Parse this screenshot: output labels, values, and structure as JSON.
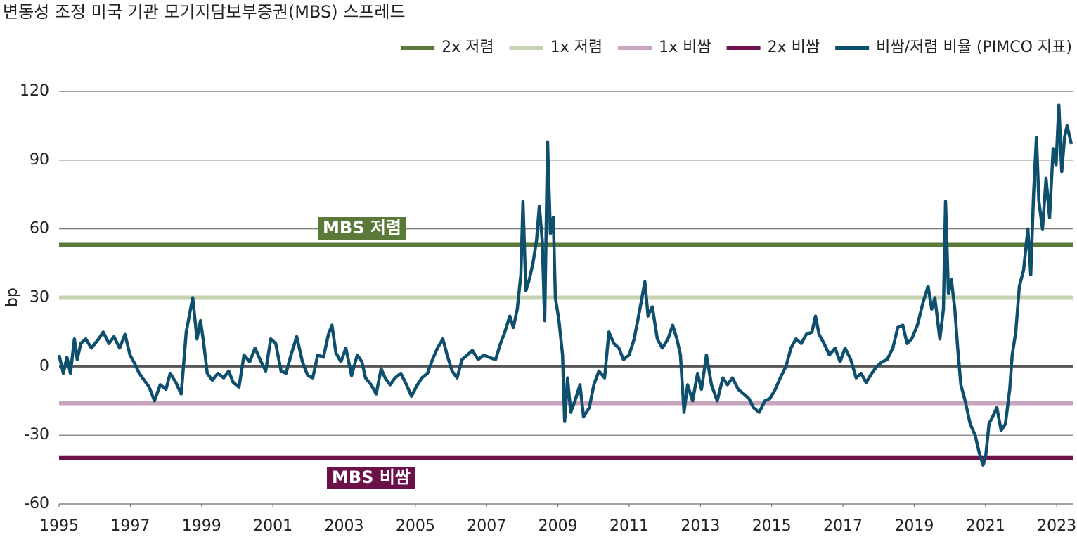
{
  "chart_data": {
    "type": "line",
    "title": "변동성 조정 미국 기관 모기지담보부증권(MBS) 스프레드",
    "y_label": "bp",
    "xlim": [
      1995,
      2023.47
    ],
    "xticks": [
      1995,
      1997,
      1999,
      2001,
      2003,
      2005,
      2007,
      2009,
      2011,
      2013,
      2015,
      2017,
      2019,
      2021,
      2023
    ],
    "ylim": [
      -60,
      120
    ],
    "yticks": [
      -60,
      -30,
      0,
      30,
      60,
      90,
      120
    ],
    "grid": true,
    "legend": "top-right",
    "hlines": [
      {
        "name": "2x 저렴",
        "color": "#5b7a3a",
        "value": 53
      },
      {
        "name": "1x 저렴",
        "color": "#c5d3b3",
        "value": 30
      },
      {
        "name": "1x 비쌈",
        "color": "#c7a6bd",
        "value": -16
      },
      {
        "name": "2x 비쌈",
        "color": "#6b1048",
        "value": -40
      }
    ],
    "annotations": [
      {
        "text": "MBS 저렴",
        "color": "#5b7a3a"
      },
      {
        "text": "MBS 비쌈",
        "color": "#6b1048"
      }
    ],
    "x": [
      1995.0,
      1995.12,
      1995.22,
      1995.32,
      1995.43,
      1995.51,
      1995.61,
      1995.75,
      1995.91,
      1996.11,
      1996.24,
      1996.4,
      1996.54,
      1996.7,
      1996.85,
      1996.99,
      1997.13,
      1997.25,
      1997.39,
      1997.53,
      1997.68,
      1997.84,
      1998.0,
      1998.12,
      1998.28,
      1998.43,
      1998.57,
      1998.75,
      1998.87,
      1998.97,
      1999.06,
      1999.16,
      1999.3,
      1999.46,
      1999.62,
      1999.76,
      1999.89,
      2000.05,
      2000.19,
      2000.35,
      2000.5,
      2000.64,
      2000.8,
      2000.94,
      2001.08,
      2001.23,
      2001.37,
      2001.51,
      2001.67,
      2001.83,
      2001.98,
      2002.12,
      2002.26,
      2002.42,
      2002.56,
      2002.66,
      2002.77,
      2002.91,
      2003.05,
      2003.21,
      2003.37,
      2003.5,
      2003.6,
      2003.76,
      2003.9,
      2004.04,
      2004.15,
      2004.29,
      2004.43,
      2004.59,
      2004.75,
      2004.89,
      2005.02,
      2005.18,
      2005.34,
      2005.48,
      2005.62,
      2005.77,
      2005.89,
      2006.03,
      2006.17,
      2006.31,
      2006.46,
      2006.6,
      2006.76,
      2006.92,
      2007.06,
      2007.25,
      2007.39,
      2007.51,
      2007.65,
      2007.75,
      2007.86,
      2007.96,
      2008.02,
      2008.1,
      2008.2,
      2008.3,
      2008.4,
      2008.48,
      2008.56,
      2008.63,
      2008.71,
      2008.79,
      2008.87,
      2008.93,
      2009.03,
      2009.13,
      2009.19,
      2009.27,
      2009.36,
      2009.48,
      2009.62,
      2009.72,
      2009.88,
      2010.01,
      2010.15,
      2010.31,
      2010.43,
      2010.57,
      2010.71,
      2010.84,
      2011.0,
      2011.14,
      2011.3,
      2011.44,
      2011.53,
      2011.65,
      2011.79,
      2011.93,
      2012.09,
      2012.22,
      2012.34,
      2012.44,
      2012.54,
      2012.64,
      2012.78,
      2012.92,
      2013.03,
      2013.17,
      2013.31,
      2013.47,
      2013.63,
      2013.76,
      2013.9,
      2014.06,
      2014.22,
      2014.36,
      2014.49,
      2014.65,
      2014.81,
      2014.95,
      2015.1,
      2015.24,
      2015.4,
      2015.54,
      2015.68,
      2015.83,
      2015.97,
      2016.13,
      2016.23,
      2016.33,
      2016.47,
      2016.62,
      2016.78,
      2016.92,
      2017.06,
      2017.22,
      2017.37,
      2017.51,
      2017.65,
      2017.81,
      2017.95,
      2018.1,
      2018.24,
      2018.4,
      2018.54,
      2018.68,
      2018.8,
      2018.93,
      2019.09,
      2019.25,
      2019.39,
      2019.49,
      2019.58,
      2019.72,
      2019.82,
      2019.88,
      2019.96,
      2020.04,
      2020.14,
      2020.22,
      2020.31,
      2020.43,
      2020.57,
      2020.71,
      2020.83,
      2020.93,
      2021.0,
      2021.1,
      2021.2,
      2021.32,
      2021.44,
      2021.56,
      2021.68,
      2021.75,
      2021.85,
      2021.95,
      2022.07,
      2022.19,
      2022.27,
      2022.35,
      2022.43,
      2022.5,
      2022.6,
      2022.7,
      2022.8,
      2022.9,
      2022.98,
      2023.06,
      2023.14,
      2023.22,
      2023.29,
      2023.41
    ],
    "series": [
      {
        "name": "비쌈/저렴 비율 (PIMCO 지표)",
        "color": "#0f4f6e",
        "values": [
          5,
          -3,
          4,
          -3,
          12,
          3,
          10,
          12,
          8,
          12,
          15,
          10,
          13,
          8,
          14,
          5,
          1,
          -3,
          -6,
          -9,
          -15,
          -8,
          -10,
          -3,
          -7,
          -12,
          15,
          30,
          12,
          20,
          10,
          -3,
          -6,
          -3,
          -5,
          -2,
          -7,
          -9,
          5,
          2,
          8,
          3,
          -2,
          12,
          10,
          -2,
          -3,
          5,
          13,
          2,
          -4,
          -5,
          5,
          4,
          14,
          18,
          6,
          2,
          8,
          -4,
          5,
          2,
          -5,
          -8,
          -12,
          -1,
          -5,
          -8,
          -5,
          -3,
          -8,
          -13,
          -9,
          -5,
          -3,
          3,
          8,
          12,
          5,
          -2,
          -5,
          3,
          5,
          7,
          3,
          5,
          4,
          3,
          10,
          15,
          22,
          17,
          25,
          40,
          72,
          33,
          38,
          45,
          55,
          70,
          55,
          20,
          98,
          58,
          65,
          30,
          20,
          5,
          -24,
          -5,
          -20,
          -15,
          -8,
          -22,
          -18,
          -8,
          -2,
          -5,
          15,
          10,
          8,
          3,
          5,
          12,
          25,
          37,
          22,
          26,
          12,
          8,
          12,
          18,
          12,
          5,
          -20,
          -8,
          -15,
          -3,
          -10,
          5,
          -8,
          -15,
          -5,
          -8,
          -5,
          -10,
          -12,
          -14,
          -18,
          -20,
          -15,
          -14,
          -10,
          -5,
          0,
          8,
          12,
          10,
          14,
          15,
          22,
          14,
          10,
          5,
          8,
          2,
          8,
          3,
          -5,
          -3,
          -7,
          -3,
          0,
          2,
          3,
          8,
          17,
          18,
          10,
          12,
          18,
          28,
          35,
          25,
          30,
          12,
          25,
          72,
          32,
          38,
          25,
          8,
          -8,
          -15,
          -25,
          -30,
          -38,
          -43,
          -40,
          -25,
          -22,
          -18,
          -28,
          -25,
          -10,
          5,
          15,
          35,
          42,
          60,
          40,
          75,
          100,
          72,
          60,
          82,
          65,
          95,
          88,
          114,
          85,
          100,
          105,
          97
        ]
      }
    ]
  }
}
